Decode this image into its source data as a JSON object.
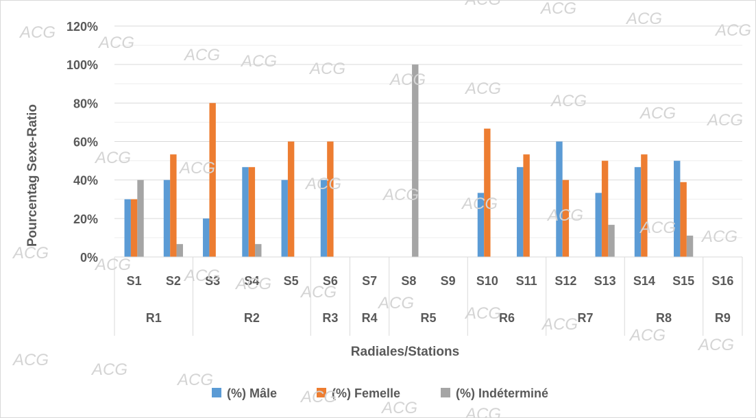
{
  "chart_data": {
    "type": "bar",
    "xlabel": "Radiales/Stations",
    "ylabel": "Pourcentag Sexe-Ratio",
    "ylim": [
      0,
      120
    ],
    "yticks": [
      "0%",
      "20%",
      "40%",
      "60%",
      "80%",
      "100%",
      "120%"
    ],
    "grid": true,
    "legend_position": "bottom",
    "categories": [
      "S1",
      "S2",
      "S3",
      "S4",
      "S5",
      "S6",
      "S7",
      "S8",
      "S9",
      "S10",
      "S11",
      "S12",
      "S13",
      "S14",
      "S15",
      "S16"
    ],
    "groups": [
      {
        "label": "R1",
        "stations": [
          "S1",
          "S2"
        ]
      },
      {
        "label": "R2",
        "stations": [
          "S3",
          "S4",
          "S5"
        ]
      },
      {
        "label": "R3",
        "stations": [
          "S6"
        ]
      },
      {
        "label": "R4",
        "stations": [
          "S7"
        ]
      },
      {
        "label": "R5",
        "stations": [
          "S8",
          "S9"
        ]
      },
      {
        "label": "R6",
        "stations": [
          "S10",
          "S11"
        ]
      },
      {
        "label": "R7",
        "stations": [
          "S12",
          "S13"
        ]
      },
      {
        "label": "R8",
        "stations": [
          "S14",
          "S15"
        ]
      },
      {
        "label": "R9",
        "stations": [
          "S16"
        ]
      }
    ],
    "series": [
      {
        "name": "(%) Mâle",
        "color": "#5b9bd5",
        "values": [
          30,
          40,
          20,
          46.7,
          40,
          40,
          0,
          0,
          0,
          33.3,
          46.7,
          60,
          33.3,
          46.7,
          50,
          0
        ]
      },
      {
        "name": "(%) Femelle",
        "color": "#ed7d31",
        "values": [
          30,
          53.3,
          80,
          46.7,
          60,
          60,
          0,
          0,
          0,
          66.7,
          53.3,
          40,
          50,
          53.3,
          38.9,
          0
        ]
      },
      {
        "name": "(%) Indéterminé",
        "color": "#a5a5a5",
        "values": [
          40,
          6.7,
          0,
          6.7,
          0,
          0,
          0,
          100,
          0,
          0,
          0,
          0,
          16.7,
          0,
          11.1,
          0
        ]
      }
    ]
  },
  "watermark_text": "ACG"
}
